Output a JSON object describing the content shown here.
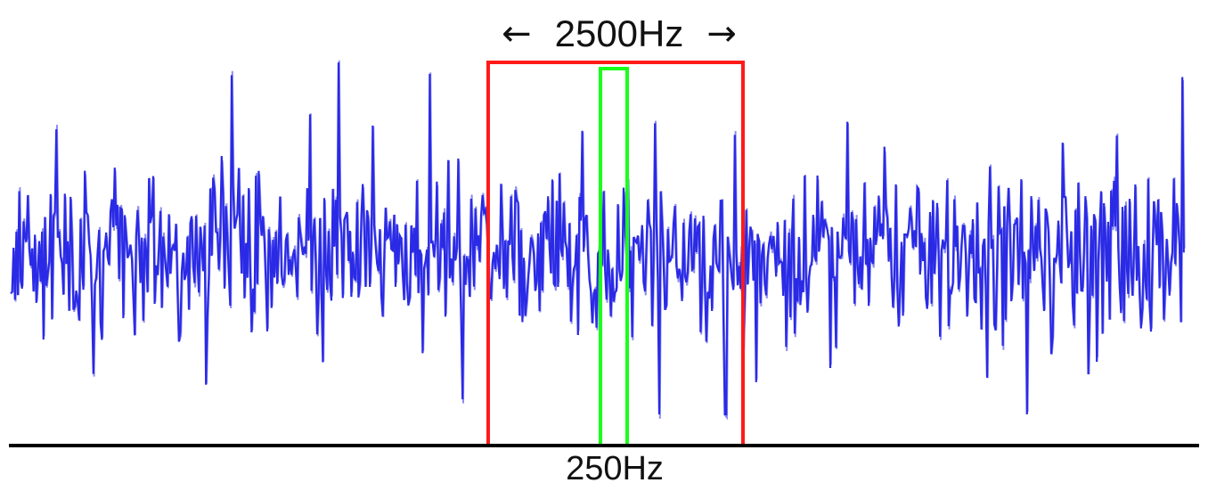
{
  "labels": {
    "wide_band": "2500Hz",
    "narrow_band": "250Hz"
  },
  "icons": {
    "left_arrow": "left-arrow-icon",
    "right_arrow": "right-arrow-icon"
  },
  "colors": {
    "signal": "#2a2ae6",
    "signal_light": "#8e8ef2",
    "wide_band_box": "#ff1a1a",
    "narrow_band_box": "#1aff1a",
    "baseline": "#000000",
    "text": "#111111"
  }
}
